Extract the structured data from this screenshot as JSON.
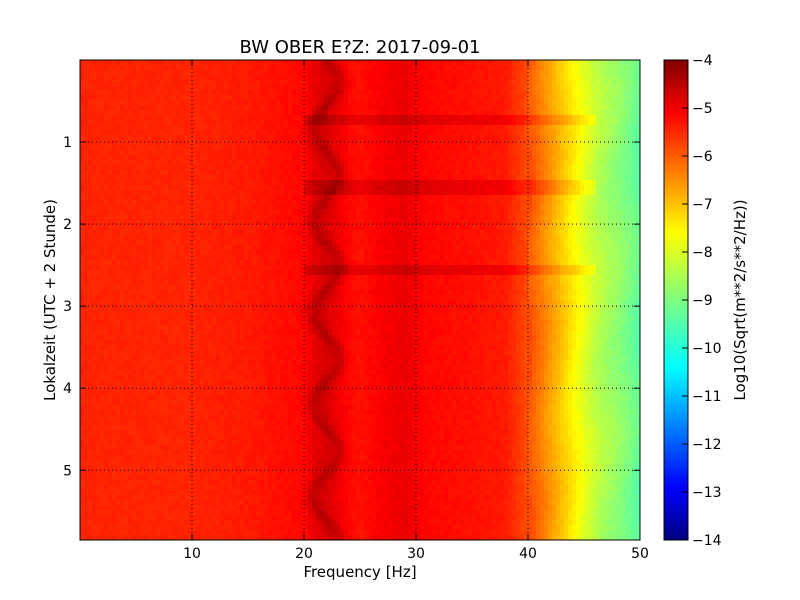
{
  "chart_data": {
    "type": "heatmap",
    "title": "BW OBER E?Z: 2017-09-01",
    "xlabel": "Frequency [Hz]",
    "ylabel": "Lokalzeit (UTC + 2 Stunde)",
    "xlim": [
      0,
      50
    ],
    "ylim": [
      5.85,
      0
    ],
    "xticks": [
      10,
      20,
      30,
      40,
      50
    ],
    "xtick_labels": [
      "10",
      "20",
      "30",
      "40",
      "50"
    ],
    "yticks": [
      1,
      2,
      3,
      4,
      5
    ],
    "ytick_labels": [
      "1",
      "2",
      "3",
      "4",
      "5"
    ],
    "grid": true,
    "colormap": "jet",
    "colorbar": {
      "label": "Log10(Sqrt(m**2/s**2/Hz))",
      "range": [
        -14,
        -4
      ],
      "ticks": [
        -4,
        -5,
        -6,
        -7,
        -8,
        -9,
        -10,
        -11,
        -12,
        -13,
        -14
      ],
      "tick_labels": [
        "−4",
        "−5",
        "−6",
        "−7",
        "−8",
        "−9",
        "−10",
        "−11",
        "−12",
        "−13",
        "−14"
      ]
    },
    "spectrum_profile": {
      "frequency_hz": [
        0,
        10,
        15,
        20,
        21,
        22,
        24,
        25,
        27,
        29,
        31,
        35,
        38,
        40,
        41,
        42,
        43,
        44,
        45,
        46,
        47,
        48,
        50
      ],
      "log10_amplitude": [
        -5.6,
        -5.6,
        -5.5,
        -5.3,
        -5.0,
        -4.9,
        -5.3,
        -5.4,
        -5.2,
        -5.05,
        -5.3,
        -5.4,
        -5.5,
        -6.0,
        -6.4,
        -6.8,
        -7.2,
        -7.6,
        -8.0,
        -8.35,
        -8.6,
        -8.8,
        -9.3
      ]
    },
    "hourly_bands_hours": [
      0.75,
      1.55,
      2.55
    ]
  }
}
